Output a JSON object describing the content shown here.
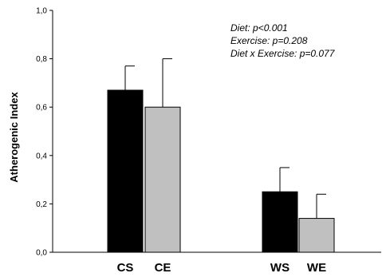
{
  "chart_data": {
    "type": "bar",
    "categories": [
      "CS",
      "CE",
      "WS",
      "WE"
    ],
    "values": [
      0.67,
      0.6,
      0.25,
      0.14
    ],
    "errors": [
      0.1,
      0.2,
      0.1,
      0.1
    ],
    "bar_colors": [
      "#000000",
      "#c0c0c0",
      "#000000",
      "#c0c0c0"
    ],
    "ylabel": "Atherogenic Index",
    "xlabel": "",
    "ylim": [
      0.0,
      1.0
    ],
    "yticks": [
      "0,0",
      "0,2",
      "0,4",
      "0,6",
      "0,8",
      "1,0"
    ],
    "grid": false,
    "annotations": [
      "Diet: p<0.001",
      "Exercise: p=0.208",
      "Diet x Exercise: p=0.077"
    ]
  }
}
